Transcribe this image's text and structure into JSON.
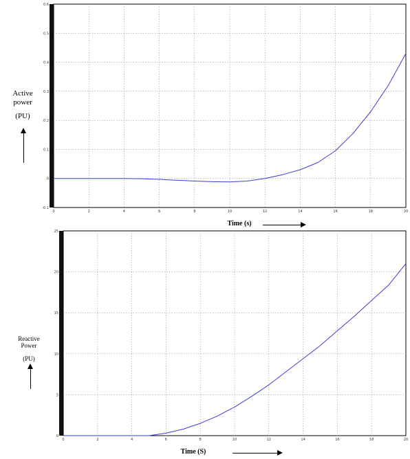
{
  "chart_data": [
    {
      "type": "line",
      "ylabel_lines": [
        "Active",
        "power",
        "(PU)"
      ],
      "xlabel": "Time (s)",
      "xlim": [
        0,
        20
      ],
      "ylim": [
        -0.1,
        0.6
      ],
      "x_ticks": [
        0,
        2,
        4,
        6,
        8,
        10,
        12,
        14,
        16,
        18,
        20
      ],
      "y_ticks": [
        -0.1,
        0,
        0.1,
        0.2,
        0.3,
        0.4,
        0.5,
        0.6
      ],
      "grid": true,
      "series": [
        {
          "color": "#3b3bd6",
          "x": [
            0,
            4,
            5,
            6,
            7,
            8,
            9,
            10,
            11,
            12,
            13,
            14,
            15,
            16,
            17,
            18,
            19,
            20
          ],
          "y": [
            0,
            0,
            -0.001,
            -0.003,
            -0.006,
            -0.009,
            -0.011,
            -0.012,
            -0.009,
            0,
            0.013,
            0.03,
            0.055,
            0.095,
            0.155,
            0.23,
            0.32,
            0.43
          ]
        }
      ]
    },
    {
      "type": "line",
      "ylabel_lines": [
        "Reactive",
        "Power",
        "(PU)"
      ],
      "xlabel": "Time (S)",
      "xlim": [
        0,
        20
      ],
      "ylim": [
        0,
        25
      ],
      "x_ticks": [
        0,
        2,
        4,
        6,
        8,
        10,
        12,
        14,
        16,
        18,
        20
      ],
      "y_ticks": [
        0,
        5,
        10,
        15,
        20,
        25
      ],
      "grid": true,
      "series": [
        {
          "color": "#3b3bd6",
          "x": [
            0,
            5,
            6,
            7,
            8,
            9,
            10,
            11,
            12,
            13,
            14,
            15,
            16,
            17,
            18,
            19,
            20
          ],
          "y": [
            0,
            0,
            0.3,
            0.8,
            1.5,
            2.4,
            3.5,
            4.8,
            6.2,
            7.8,
            9.4,
            11.0,
            12.8,
            14.6,
            16.5,
            18.4,
            21.0
          ]
        }
      ]
    }
  ]
}
